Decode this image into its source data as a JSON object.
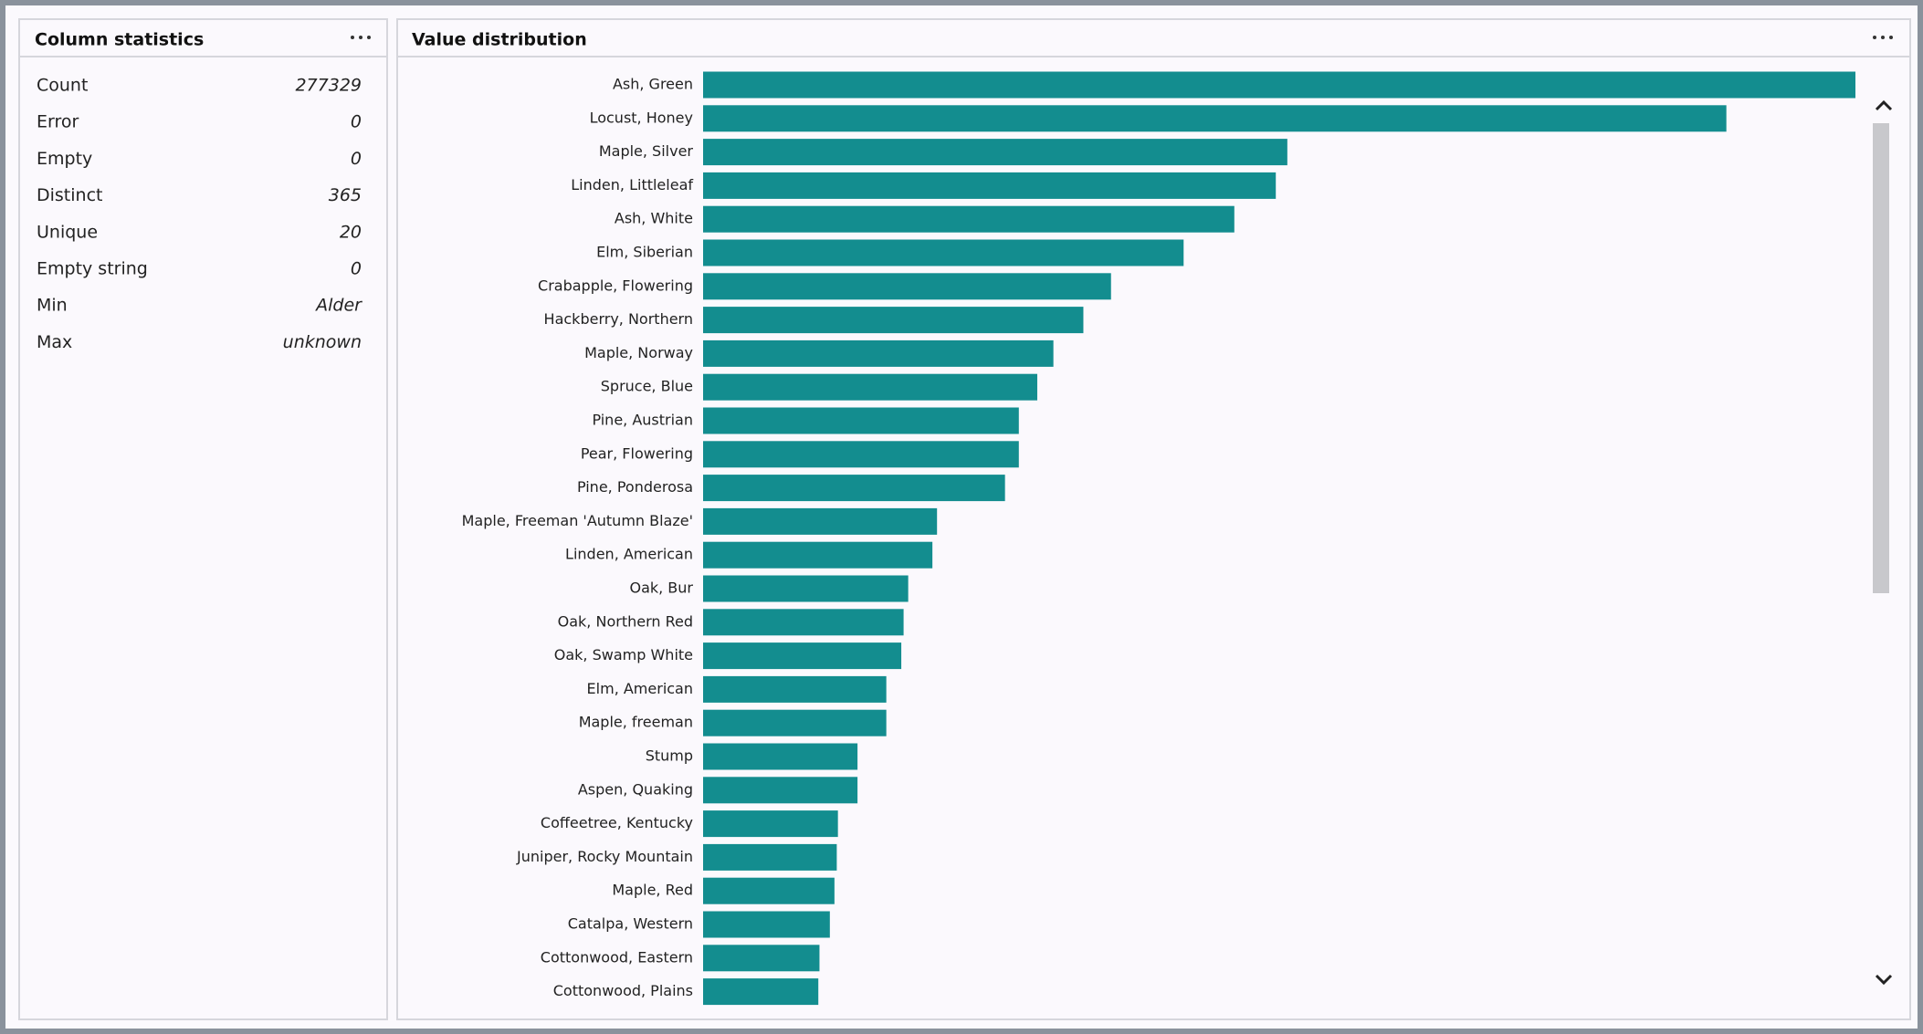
{
  "column_statistics": {
    "title": "Column statistics",
    "rows": [
      {
        "label": "Count",
        "value": 277329
      },
      {
        "label": "Error",
        "value": 0
      },
      {
        "label": "Empty",
        "value": 0
      },
      {
        "label": "Distinct",
        "value": 365
      },
      {
        "label": "Unique",
        "value": 20
      },
      {
        "label": "Empty string",
        "value": 0
      },
      {
        "label": "Min",
        "value": "Alder"
      },
      {
        "label": "Max",
        "value": "unknown"
      }
    ]
  },
  "chart_data": {
    "type": "bar",
    "orientation": "horizontal",
    "title": "Value distribution",
    "color": "#138d8f",
    "categories": [
      "Ash, Green",
      "Locust, Honey",
      "Maple, Silver",
      "Linden, Littleleaf",
      "Ash, White",
      "Elm, Siberian",
      "Crabapple, Flowering",
      "Hackberry, Northern",
      "Maple, Norway",
      "Spruce, Blue",
      "Pine, Austrian",
      "Pear, Flowering",
      "Pine, Ponderosa",
      "Maple, Freeman 'Autumn Blaze'",
      "Linden, American",
      "Oak, Bur",
      "Oak, Northern Red",
      "Oak, Swamp White",
      "Elm, American",
      "Maple, freeman",
      "Stump",
      "Aspen, Quaking",
      "Coffeetree, Kentucky",
      "Juniper, Rocky Mountain",
      "Maple, Red",
      "Catalpa, Western",
      "Cottonwood, Eastern",
      "Cottonwood, Plains"
    ],
    "values": [
      100,
      88.8,
      50.7,
      49.7,
      46.1,
      41.7,
      35.4,
      33,
      30.4,
      29,
      27.4,
      27.4,
      26.2,
      20.3,
      19.9,
      17.8,
      17.4,
      17.2,
      15.9,
      15.9,
      13.4,
      13.4,
      11.7,
      11.6,
      11.4,
      11,
      10.1,
      10
    ]
  }
}
